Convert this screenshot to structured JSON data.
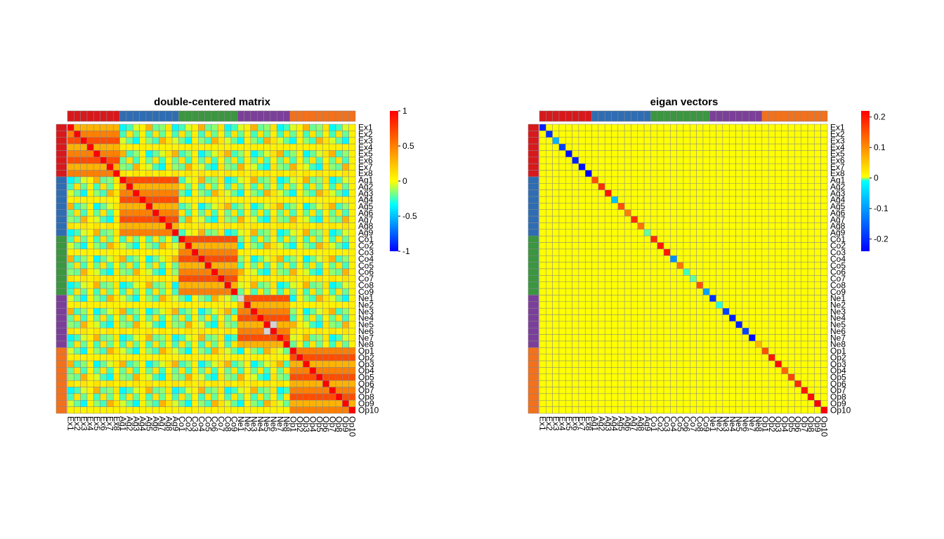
{
  "labels": [
    "Ex1",
    "Ex2",
    "Ex3",
    "Ex4",
    "Ex5",
    "Ex6",
    "Ex7",
    "Ex8",
    "Ag1",
    "Ag2",
    "Ag3",
    "Ag4",
    "Ag5",
    "Ag6",
    "Ag7",
    "Ag8",
    "Ag9",
    "Co1",
    "Co2",
    "Co3",
    "Co4",
    "Co5",
    "Co6",
    "Co7",
    "Co8",
    "Co9",
    "Ne1",
    "Ne2",
    "Ne3",
    "Ne4",
    "Ne5",
    "Ne6",
    "Ne7",
    "Ne8",
    "Op1",
    "Op2",
    "Op3",
    "Op4",
    "Op5",
    "Op6",
    "Op7",
    "Op8",
    "Op9",
    "Op10"
  ],
  "groups": [
    {
      "prefix": "Ex",
      "color": "#d7191c"
    },
    {
      "prefix": "Ag",
      "color": "#2f6db3"
    },
    {
      "prefix": "Co",
      "color": "#3b9640"
    },
    {
      "prefix": "Ne",
      "color": "#7b3f99"
    },
    {
      "prefix": "Op",
      "color": "#f2711c"
    }
  ],
  "colors": {
    "cell_border": "#888888",
    "na_cell": "#d3d3d3"
  },
  "chart_data": [
    {
      "type": "heatmap",
      "title": "double-centered matrix",
      "legend": {
        "ticks": [
          1,
          0.5,
          0,
          -0.5,
          -1
        ],
        "tick_labels": [
          "1",
          "0.5",
          "0",
          "-0.5",
          "-1"
        ],
        "range": [
          -1,
          1
        ]
      },
      "colorscale": [
        "#0000ff",
        "#00ffff",
        "#ffff00",
        "#ff0000"
      ],
      "pattern": {
        "diagonal": 1,
        "within_group": [
          0.3,
          0.5,
          0.7
        ],
        "between_groups": [
          -0.35,
          -0.2,
          -0.05,
          0.1,
          0.3,
          -0.25,
          -0.15,
          0.05
        ],
        "na_cells": [
          [
            26,
            26
          ],
          [
            30,
            31
          ]
        ]
      }
    },
    {
      "type": "heatmap",
      "title": "eigan vectors",
      "legend": {
        "ticks": [
          0.2,
          0.1,
          0,
          -0.1,
          -0.2
        ],
        "tick_labels": [
          "0.2",
          "0.1",
          "0",
          "-0.1",
          "-0.2"
        ],
        "range": [
          -0.24,
          0.22
        ]
      },
      "colorscale": [
        "#0000ff",
        "#00ffff",
        "#ffff00",
        "#ff0000"
      ],
      "off_diagonal": 0,
      "diagonal": [
        -0.22,
        -0.21,
        -0.13,
        -0.2,
        -0.23,
        -0.22,
        -0.23,
        -0.24,
        0.15,
        0.18,
        0.2,
        -0.12,
        0.15,
        0.11,
        0.18,
        0.12,
        -0.05,
        0.18,
        0.2,
        0.2,
        -0.15,
        0.12,
        -0.06,
        -0.05,
        0.15,
        -0.14,
        -0.21,
        -0.07,
        -0.2,
        -0.22,
        -0.22,
        -0.2,
        -0.23,
        0.06,
        0.15,
        0.2,
        0.21,
        0.13,
        0.16,
        0.18,
        0.2,
        0.21,
        0.22,
        0.22
      ]
    }
  ]
}
